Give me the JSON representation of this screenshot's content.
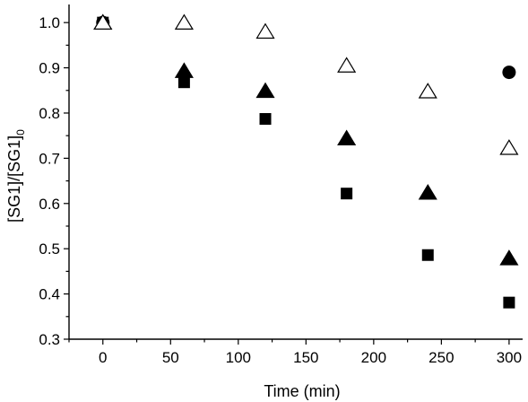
{
  "chart_data": {
    "type": "scatter",
    "xlabel": "Time (min)",
    "ylabel": {
      "part1": "[SG1]/[SG1]",
      "subscript": "0"
    },
    "xlim": [
      -25,
      310
    ],
    "ylim": [
      0.3,
      1.04
    ],
    "xticks": [
      0,
      50,
      100,
      150,
      200,
      250,
      300
    ],
    "yticks": [
      0.3,
      0.4,
      0.5,
      0.6,
      0.7,
      0.8,
      0.9,
      1.0
    ],
    "xtick_labels": [
      "0",
      "50",
      "100",
      "150",
      "200",
      "250",
      "300"
    ],
    "ytick_labels": [
      "0.3",
      "0.4",
      "0.5",
      "0.6",
      "0.7",
      "0.8",
      "0.9",
      "1.0"
    ],
    "grid": false,
    "series": [
      {
        "marker": "open-triangle",
        "color": "#000000",
        "points": [
          [
            0,
            1.0
          ],
          [
            60,
            1.0
          ],
          [
            120,
            0.98
          ],
          [
            180,
            0.905
          ],
          [
            240,
            0.848
          ],
          [
            300,
            0.723
          ]
        ]
      },
      {
        "marker": "filled-triangle",
        "color": "#000000",
        "points": [
          [
            0,
            1.0
          ],
          [
            60,
            0.893
          ],
          [
            120,
            0.849
          ],
          [
            180,
            0.744
          ],
          [
            240,
            0.624
          ],
          [
            300,
            0.479
          ]
        ]
      },
      {
        "marker": "filled-square",
        "color": "#000000",
        "points": [
          [
            0,
            1.0
          ],
          [
            60,
            0.868
          ],
          [
            120,
            0.787
          ],
          [
            180,
            0.622
          ],
          [
            240,
            0.486
          ],
          [
            300,
            0.381
          ]
        ]
      },
      {
        "marker": "filled-circle",
        "color": "#000000",
        "points": [
          [
            0,
            1.0
          ],
          [
            300,
            0.89
          ]
        ]
      }
    ]
  }
}
